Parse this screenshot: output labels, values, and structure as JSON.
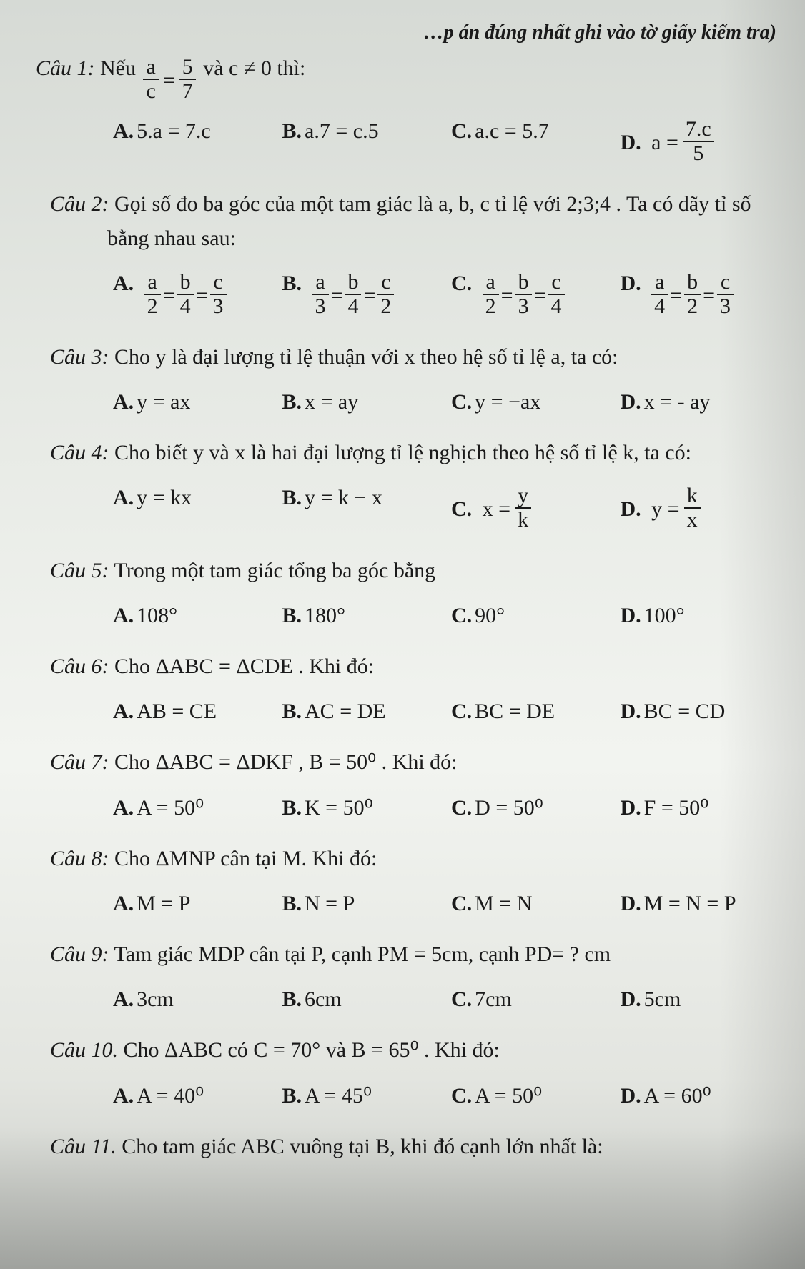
{
  "header_note": "…p án đúng nhất ghi vào tờ giấy kiểm tra)",
  "q1": {
    "label": "Câu 1:",
    "pre": "Nếu ",
    "frac_l_num": "a",
    "frac_l_den": "c",
    "eq": " = ",
    "frac_r_num": "5",
    "frac_r_den": "7",
    "post": " và c ≠ 0 thì:",
    "A": "5.a = 7.c",
    "B": "a.7 = c.5",
    "C": "a.c = 5.7",
    "D_pre": "a = ",
    "D_num": "7.c",
    "D_den": "5"
  },
  "q2": {
    "label": "Câu 2:",
    "line1": "Gọi số đo ba góc của một tam giác là a, b, c tỉ lệ với 2;3;4 . Ta có dãy tỉ số",
    "line2": "bằng nhau sau:",
    "A": {
      "n": [
        "a",
        "b",
        "c"
      ],
      "d": [
        "2",
        "4",
        "3"
      ]
    },
    "B": {
      "n": [
        "a",
        "b",
        "c"
      ],
      "d": [
        "3",
        "4",
        "2"
      ]
    },
    "C": {
      "n": [
        "a",
        "b",
        "c"
      ],
      "d": [
        "2",
        "3",
        "4"
      ]
    },
    "D": {
      "n": [
        "a",
        "b",
        "c"
      ],
      "d": [
        "4",
        "2",
        "3"
      ]
    }
  },
  "q3": {
    "label": "Câu 3:",
    "text": "Cho y là đại lượng tỉ lệ thuận với x theo hệ số tỉ lệ a, ta có:",
    "A": "y = ax",
    "B": "x = ay",
    "C": "y = −ax",
    "D": "x = - ay"
  },
  "q4": {
    "label": "Câu 4:",
    "text": "Cho biết y và x là hai đại lượng tỉ lệ nghịch theo hệ số tỉ lệ k, ta có:",
    "A": "y = kx",
    "B": "y = k − x",
    "C_pre": "x = ",
    "C_num": "y",
    "C_den": "k",
    "D_pre": "y = ",
    "D_num": "k",
    "D_den": "x"
  },
  "q5": {
    "label": "Câu 5:",
    "text": "Trong một tam giác tổng ba góc bằng",
    "A": "108°",
    "B": "180°",
    "C": "90°",
    "D": "100°"
  },
  "q6": {
    "label": "Câu 6:",
    "text": "Cho ΔABC = ΔCDE . Khi đó:",
    "A": "AB = CE",
    "B": "AC = DE",
    "C": "BC = DE",
    "D": "BC = CD"
  },
  "q7": {
    "label": "Câu 7:",
    "text": "Cho ΔABC = ΔDKF , B = 50⁰ . Khi đó:",
    "A": "A = 50⁰",
    "B": "K = 50⁰",
    "C": "D = 50⁰",
    "D": "F = 50⁰"
  },
  "q8": {
    "label": "Câu 8:",
    "text": "Cho ΔMNP cân tại M. Khi đó:",
    "A": "M = P",
    "B": "N = P",
    "C": "M = N",
    "D": "M = N = P"
  },
  "q9": {
    "label": "Câu 9:",
    "text": "Tam giác MDP cân tại P, cạnh PM = 5cm, cạnh PD= ? cm",
    "A": "3cm",
    "B": "6cm",
    "C": "7cm",
    "D": "5cm"
  },
  "q10": {
    "label": "Câu 10.",
    "text": "Cho ΔABC có C = 70° và B = 65⁰ . Khi đó:",
    "A": "A = 40⁰",
    "B": "A = 45⁰",
    "C": "A = 50⁰",
    "D": "A = 60⁰"
  },
  "q11": {
    "label": "Câu 11.",
    "text": "Cho tam giác ABC vuông tại B, khi đó cạnh lớn nhất là:"
  }
}
